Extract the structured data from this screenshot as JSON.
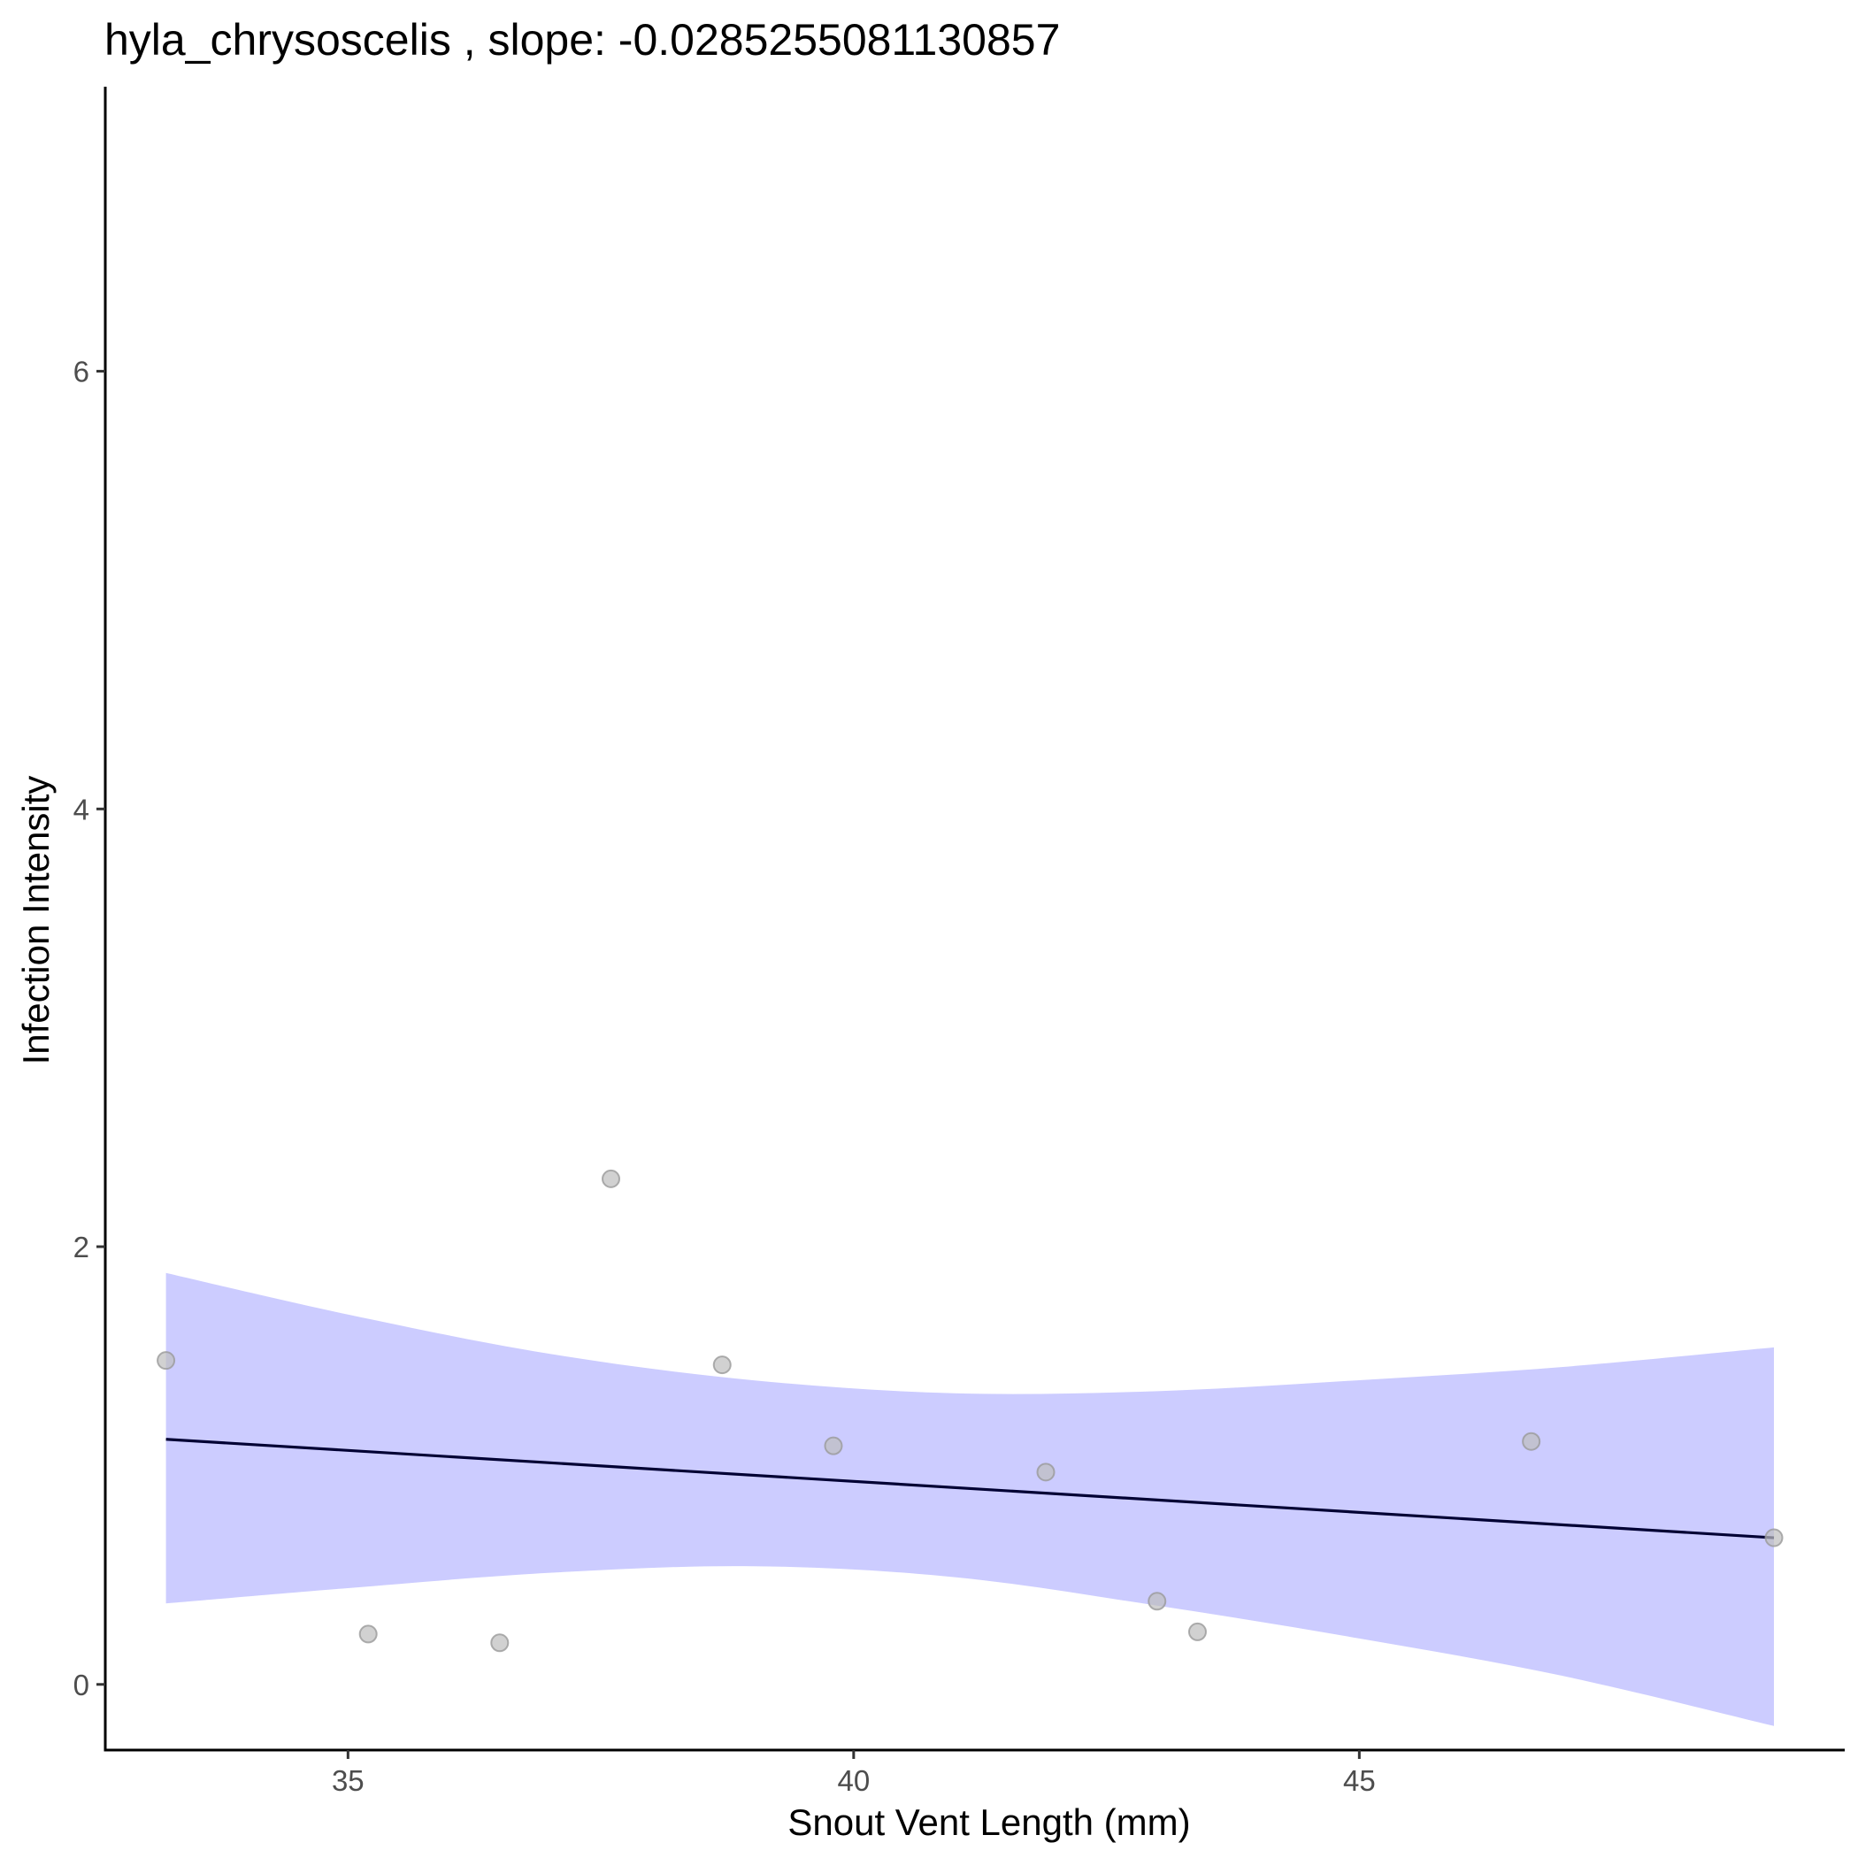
{
  "chart_data": {
    "type": "scatter",
    "title": "hyla_chrysoscelis , slope: -0.0285255081130857",
    "xlabel": "Snout Vent Length (mm)",
    "ylabel": "Infection Intensity",
    "xlim": [
      32.6,
      49.8
    ],
    "ylim": [
      -0.3,
      7.3
    ],
    "x_ticks": [
      35,
      40,
      45
    ],
    "y_ticks": [
      0,
      2,
      4,
      6
    ],
    "grid": false,
    "points": [
      {
        "x": 33.2,
        "y": 1.48
      },
      {
        "x": 35.2,
        "y": 0.23
      },
      {
        "x": 36.5,
        "y": 0.19
      },
      {
        "x": 37.6,
        "y": 2.31
      },
      {
        "x": 38.7,
        "y": 1.46
      },
      {
        "x": 39.8,
        "y": 1.09
      },
      {
        "x": 41.9,
        "y": 0.97
      },
      {
        "x": 43.0,
        "y": 0.38
      },
      {
        "x": 43.4,
        "y": 0.24
      },
      {
        "x": 46.7,
        "y": 1.11
      },
      {
        "x": 49.1,
        "y": 0.67
      }
    ],
    "fit_line": {
      "x": [
        33.2,
        49.1
      ],
      "y": [
        1.12,
        0.67
      ]
    },
    "confidence_band": {
      "x": [
        33.2,
        35,
        37,
        39,
        41,
        43,
        45,
        47,
        49.1
      ],
      "upper": [
        1.88,
        1.69,
        1.51,
        1.39,
        1.33,
        1.34,
        1.39,
        1.45,
        1.54
      ],
      "lower": [
        0.37,
        0.44,
        0.51,
        0.54,
        0.49,
        0.36,
        0.21,
        0.04,
        -0.19
      ]
    },
    "colors": {
      "point_fill": "#bdbdbd",
      "point_stroke": "#9a9a9a",
      "band": "#ccccff",
      "line": "#000033",
      "axis": "#000000",
      "tick_label": "#4d4d4d"
    }
  }
}
